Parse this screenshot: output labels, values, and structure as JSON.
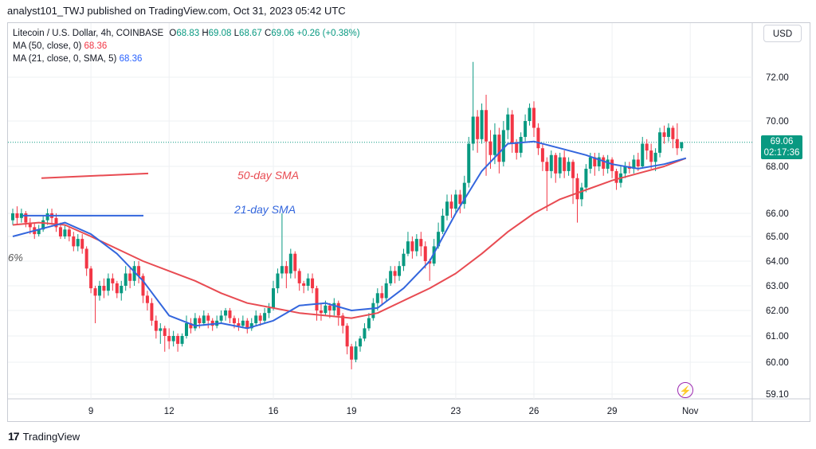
{
  "header": {
    "text": "analyst101_TWJ published on TradingView.com, Oct 31, 2023 05:42 UTC"
  },
  "legend": {
    "symbol": "Litecoin / U.S. Dollar, 4h, COINBASE",
    "open_label": "O",
    "open": "68.83",
    "high_label": "H",
    "high": "69.08",
    "low_label": "L",
    "low": "68.67",
    "close_label": "C",
    "close": "69.06",
    "change": "+0.26 (+0.38%)",
    "ma50_label": "MA (50, close, 0)",
    "ma50_value": "68.36",
    "ma21_label": "MA (21, close, 0, SMA, 5)",
    "ma21_value": "68.36"
  },
  "currency": "USD",
  "price_tag": {
    "price": "69.06",
    "countdown": "02:17:36"
  },
  "annotations": {
    "sma50": "50-day SMA",
    "sma21": "21-day SMA",
    "pct": "6%"
  },
  "footer": {
    "brand": "TradingView"
  },
  "colors": {
    "up": "#089981",
    "down": "#f23645",
    "ma50": "#e84b52",
    "ma21": "#3366dd",
    "grid": "#eef0f3"
  },
  "chart_data": {
    "type": "candlestick",
    "y_ticks": [
      59.1,
      60.0,
      61.0,
      62.0,
      63.0,
      64.0,
      65.0,
      66.0,
      68.0,
      70.0,
      72.0
    ],
    "y_tick_labels": [
      "59.10",
      "60.00",
      "61.00",
      "62.00",
      "63.00",
      "64.00",
      "65.00",
      "66.00",
      "68.00",
      "70.00",
      "72.00"
    ],
    "x_ticks": [
      {
        "label": "9",
        "index": 18
      },
      {
        "label": "12",
        "index": 36
      },
      {
        "label": "16",
        "index": 60
      },
      {
        "label": "19",
        "index": 78
      },
      {
        "label": "23",
        "index": 102
      },
      {
        "label": "26",
        "index": 120
      },
      {
        "label": "29",
        "index": 138
      },
      {
        "label": "Nov",
        "index": 156
      }
    ],
    "last_price": 69.06,
    "candles": [
      [
        65.7,
        66.0,
        65.5,
        66.2
      ],
      [
        66.0,
        65.8,
        65.5,
        66.3
      ],
      [
        65.8,
        66.0,
        65.6,
        66.2
      ],
      [
        66.0,
        65.6,
        65.4,
        66.1
      ],
      [
        65.6,
        65.4,
        65.1,
        65.8
      ],
      [
        65.4,
        65.1,
        64.9,
        65.6
      ],
      [
        65.1,
        65.3,
        65.0,
        65.5
      ],
      [
        65.3,
        65.7,
        65.2,
        65.9
      ],
      [
        65.7,
        66.0,
        65.5,
        66.2
      ],
      [
        66.0,
        65.8,
        65.5,
        66.2
      ],
      [
        65.8,
        65.4,
        65.2,
        66.0
      ],
      [
        65.4,
        65.0,
        64.9,
        65.6
      ],
      [
        65.0,
        65.3,
        64.9,
        65.5
      ],
      [
        65.3,
        65.0,
        64.8,
        65.4
      ],
      [
        65.0,
        64.6,
        64.4,
        65.2
      ],
      [
        64.6,
        64.9,
        64.4,
        65.1
      ],
      [
        64.9,
        64.5,
        64.3,
        65.1
      ],
      [
        64.5,
        63.7,
        63.4,
        64.6
      ],
      [
        63.7,
        62.9,
        62.7,
        63.8
      ],
      [
        62.9,
        62.6,
        61.5,
        63.0
      ],
      [
        62.6,
        63.0,
        62.4,
        63.2
      ],
      [
        63.0,
        62.8,
        62.5,
        63.3
      ],
      [
        62.8,
        63.3,
        62.6,
        63.5
      ],
      [
        63.3,
        63.1,
        62.8,
        63.5
      ],
      [
        63.1,
        62.7,
        62.5,
        63.2
      ],
      [
        62.7,
        63.0,
        62.4,
        63.2
      ],
      [
        63.0,
        63.5,
        62.8,
        63.8
      ],
      [
        63.5,
        63.2,
        62.9,
        63.7
      ],
      [
        63.2,
        63.8,
        63.0,
        64.0
      ],
      [
        63.8,
        63.4,
        63.1,
        64.0
      ],
      [
        63.4,
        62.6,
        62.3,
        63.5
      ],
      [
        62.6,
        62.3,
        62.0,
        62.8
      ],
      [
        62.3,
        61.6,
        61.4,
        62.5
      ],
      [
        61.6,
        61.2,
        60.9,
        61.8
      ],
      [
        61.2,
        61.3,
        60.7,
        61.5
      ],
      [
        61.3,
        61.0,
        60.4,
        61.4
      ],
      [
        61.0,
        60.8,
        60.5,
        61.3
      ],
      [
        60.8,
        61.0,
        60.6,
        61.2
      ],
      [
        61.0,
        60.7,
        60.4,
        61.1
      ],
      [
        60.7,
        61.0,
        60.6,
        61.1
      ],
      [
        61.0,
        61.5,
        60.9,
        61.8
      ],
      [
        61.5,
        61.3,
        61.1,
        61.7
      ],
      [
        61.3,
        61.7,
        61.2,
        61.9
      ],
      [
        61.7,
        61.5,
        61.3,
        61.8
      ],
      [
        61.5,
        61.8,
        61.4,
        62.0
      ],
      [
        61.8,
        61.6,
        61.3,
        61.9
      ],
      [
        61.6,
        61.4,
        61.2,
        61.7
      ],
      [
        61.4,
        61.6,
        61.3,
        61.8
      ],
      [
        61.6,
        61.8,
        61.5,
        62.0
      ],
      [
        61.8,
        62.0,
        61.6,
        62.1
      ],
      [
        62.0,
        61.7,
        61.5,
        62.1
      ],
      [
        61.7,
        61.5,
        61.3,
        61.8
      ],
      [
        61.5,
        61.4,
        61.2,
        61.7
      ],
      [
        61.4,
        61.6,
        61.3,
        61.8
      ],
      [
        61.6,
        61.3,
        61.1,
        61.7
      ],
      [
        61.3,
        61.5,
        61.2,
        61.7
      ],
      [
        61.5,
        61.8,
        61.4,
        62.0
      ],
      [
        61.8,
        61.6,
        61.4,
        61.9
      ],
      [
        61.6,
        61.9,
        61.5,
        62.1
      ],
      [
        61.9,
        62.1,
        61.7,
        62.3
      ],
      [
        62.1,
        62.9,
        62.0,
        63.2
      ],
      [
        62.9,
        63.5,
        62.7,
        63.7
      ],
      [
        63.5,
        63.8,
        63.3,
        66.0
      ],
      [
        63.8,
        63.5,
        62.9,
        64.0
      ],
      [
        63.5,
        64.3,
        63.3,
        64.5
      ],
      [
        64.3,
        63.6,
        63.3,
        64.4
      ],
      [
        63.6,
        63.1,
        62.8,
        63.7
      ],
      [
        63.1,
        63.0,
        62.7,
        63.2
      ],
      [
        63.0,
        63.3,
        62.8,
        63.5
      ],
      [
        63.3,
        62.9,
        62.7,
        63.5
      ],
      [
        62.9,
        62.0,
        61.6,
        63.0
      ],
      [
        62.0,
        61.9,
        61.6,
        62.3
      ],
      [
        61.9,
        62.2,
        61.8,
        62.4
      ],
      [
        62.2,
        62.0,
        61.7,
        62.3
      ],
      [
        62.0,
        62.3,
        61.8,
        62.5
      ],
      [
        62.3,
        61.8,
        61.4,
        62.4
      ],
      [
        61.8,
        61.4,
        61.1,
        61.9
      ],
      [
        61.4,
        60.6,
        60.3,
        61.5
      ],
      [
        60.6,
        60.1,
        59.8,
        60.7
      ],
      [
        60.1,
        60.6,
        60.0,
        60.8
      ],
      [
        60.6,
        60.9,
        60.4,
        61.0
      ],
      [
        60.9,
        61.3,
        60.8,
        61.5
      ],
      [
        61.3,
        61.7,
        61.2,
        61.9
      ],
      [
        61.7,
        62.3,
        61.6,
        62.5
      ],
      [
        62.3,
        62.7,
        62.0,
        62.9
      ],
      [
        62.7,
        62.5,
        62.2,
        63.0
      ],
      [
        62.5,
        63.1,
        62.4,
        63.3
      ],
      [
        63.1,
        63.6,
        63.0,
        63.8
      ],
      [
        63.6,
        63.4,
        63.1,
        63.8
      ],
      [
        63.4,
        63.8,
        63.2,
        64.0
      ],
      [
        63.8,
        64.3,
        63.6,
        64.5
      ],
      [
        64.3,
        64.8,
        64.2,
        65.2
      ],
      [
        64.8,
        64.4,
        64.1,
        65.0
      ],
      [
        64.4,
        64.9,
        64.2,
        65.1
      ],
      [
        64.9,
        64.6,
        64.2,
        65.2
      ],
      [
        64.6,
        64.0,
        63.7,
        64.8
      ],
      [
        64.0,
        63.9,
        63.2,
        64.1
      ],
      [
        63.9,
        64.6,
        63.8,
        64.9
      ],
      [
        64.6,
        65.2,
        64.5,
        65.6
      ],
      [
        65.2,
        65.9,
        65.1,
        66.2
      ],
      [
        65.9,
        66.5,
        65.7,
        66.8
      ],
      [
        66.5,
        66.2,
        65.8,
        66.8
      ],
      [
        66.2,
        66.8,
        66.0,
        67.0
      ],
      [
        66.8,
        66.4,
        66.0,
        67.0
      ],
      [
        66.4,
        67.3,
        66.2,
        67.6
      ],
      [
        67.3,
        69.0,
        67.1,
        69.3
      ],
      [
        69.0,
        70.2,
        68.7,
        72.7
      ],
      [
        70.2,
        69.2,
        68.6,
        70.5
      ],
      [
        69.2,
        70.5,
        69.0,
        70.8
      ],
      [
        70.5,
        69.1,
        67.6,
        71.2
      ],
      [
        69.1,
        68.5,
        67.9,
        69.6
      ],
      [
        68.5,
        69.4,
        68.1,
        69.9
      ],
      [
        69.4,
        68.2,
        67.7,
        69.7
      ],
      [
        68.2,
        69.6,
        68.0,
        70.0
      ],
      [
        69.6,
        70.3,
        69.2,
        70.6
      ],
      [
        70.3,
        69.0,
        68.6,
        70.5
      ],
      [
        69.0,
        68.6,
        68.3,
        69.2
      ],
      [
        68.6,
        69.3,
        68.4,
        69.5
      ],
      [
        69.3,
        70.0,
        69.1,
        70.3
      ],
      [
        70.0,
        70.6,
        69.8,
        70.8
      ],
      [
        70.6,
        69.7,
        69.3,
        70.9
      ],
      [
        69.7,
        68.8,
        68.5,
        69.9
      ],
      [
        68.8,
        68.2,
        67.8,
        69.0
      ],
      [
        68.2,
        67.8,
        66.1,
        68.4
      ],
      [
        67.8,
        68.5,
        67.5,
        68.7
      ],
      [
        68.5,
        67.7,
        67.3,
        68.6
      ],
      [
        67.7,
        68.4,
        67.5,
        68.6
      ],
      [
        68.4,
        67.8,
        67.5,
        68.7
      ],
      [
        67.8,
        68.2,
        67.6,
        68.4
      ],
      [
        68.2,
        67.5,
        66.4,
        68.3
      ],
      [
        67.5,
        66.6,
        65.6,
        67.7
      ],
      [
        66.6,
        67.1,
        66.3,
        67.3
      ],
      [
        67.1,
        67.9,
        66.9,
        68.1
      ],
      [
        67.9,
        68.4,
        67.7,
        68.6
      ],
      [
        68.4,
        68.0,
        67.6,
        68.6
      ],
      [
        68.0,
        68.4,
        67.8,
        68.6
      ],
      [
        68.4,
        67.9,
        67.6,
        68.5
      ],
      [
        67.9,
        68.3,
        67.7,
        68.5
      ],
      [
        68.3,
        67.8,
        67.5,
        68.4
      ],
      [
        67.8,
        67.3,
        67.0,
        67.9
      ],
      [
        67.3,
        67.7,
        67.1,
        68.0
      ],
      [
        67.7,
        68.0,
        67.5,
        68.2
      ],
      [
        68.0,
        67.9,
        67.7,
        68.2
      ],
      [
        67.9,
        68.3,
        67.7,
        68.5
      ],
      [
        68.3,
        68.0,
        67.8,
        68.6
      ],
      [
        68.0,
        69.0,
        67.9,
        69.3
      ],
      [
        69.0,
        68.7,
        68.3,
        69.2
      ],
      [
        68.7,
        68.2,
        67.9,
        69.0
      ],
      [
        68.2,
        68.6,
        67.8,
        68.8
      ],
      [
        68.6,
        69.5,
        68.4,
        69.7
      ],
      [
        69.5,
        69.3,
        69.0,
        69.8
      ],
      [
        69.3,
        69.7,
        69.1,
        69.9
      ],
      [
        69.7,
        69.2,
        68.8,
        69.8
      ],
      [
        69.2,
        68.8,
        68.5,
        69.9
      ],
      [
        68.8,
        69.06,
        68.67,
        69.08
      ]
    ],
    "ma21": [
      [
        0,
        65.0
      ],
      [
        6,
        65.3
      ],
      [
        12,
        65.6
      ],
      [
        18,
        65.1
      ],
      [
        24,
        64.3
      ],
      [
        30,
        63.2
      ],
      [
        36,
        61.8
      ],
      [
        42,
        61.4
      ],
      [
        48,
        61.5
      ],
      [
        54,
        61.3
      ],
      [
        60,
        61.6
      ],
      [
        66,
        62.2
      ],
      [
        72,
        62.3
      ],
      [
        78,
        62.0
      ],
      [
        84,
        62.1
      ],
      [
        90,
        62.9
      ],
      [
        96,
        64.0
      ],
      [
        102,
        66.0
      ],
      [
        108,
        67.8
      ],
      [
        114,
        69.0
      ],
      [
        120,
        69.1
      ],
      [
        126,
        68.8
      ],
      [
        132,
        68.5
      ],
      [
        138,
        68.1
      ],
      [
        144,
        67.9
      ],
      [
        150,
        68.1
      ],
      [
        155,
        68.36
      ]
    ],
    "ma50": [
      [
        0,
        65.5
      ],
      [
        6,
        65.6
      ],
      [
        12,
        65.5
      ],
      [
        18,
        65.0
      ],
      [
        24,
        64.5
      ],
      [
        30,
        64.0
      ],
      [
        36,
        63.6
      ],
      [
        42,
        63.2
      ],
      [
        48,
        62.7
      ],
      [
        54,
        62.3
      ],
      [
        60,
        62.1
      ],
      [
        66,
        61.9
      ],
      [
        72,
        61.8
      ],
      [
        78,
        61.7
      ],
      [
        84,
        61.9
      ],
      [
        90,
        62.4
      ],
      [
        96,
        62.9
      ],
      [
        102,
        63.5
      ],
      [
        108,
        64.3
      ],
      [
        114,
        65.2
      ],
      [
        120,
        66.0
      ],
      [
        126,
        66.6
      ],
      [
        132,
        67.0
      ],
      [
        138,
        67.4
      ],
      [
        144,
        67.7
      ],
      [
        150,
        68.0
      ],
      [
        155,
        68.36
      ]
    ],
    "legend_lines": {
      "sma50": [
        67.5,
        67.7
      ],
      "sma21": [
        65.9,
        65.9
      ]
    }
  }
}
